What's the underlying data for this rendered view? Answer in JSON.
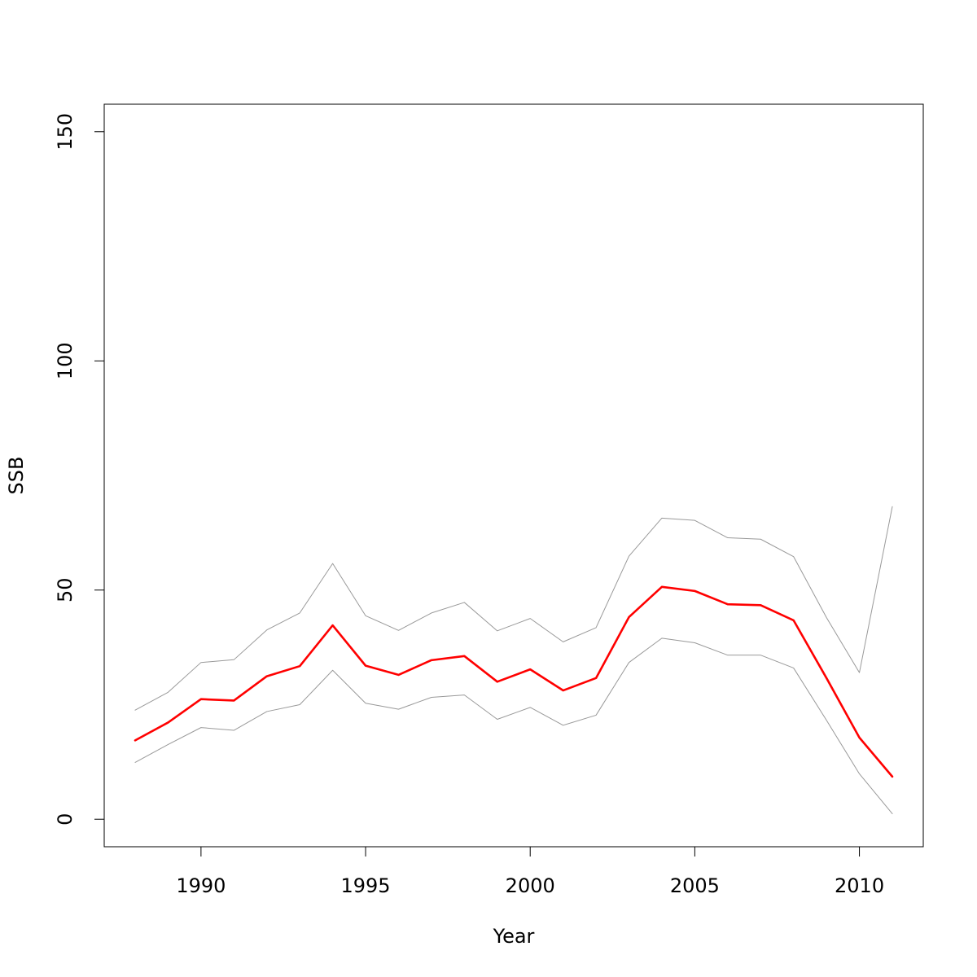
{
  "chart_data": {
    "type": "line",
    "title": "",
    "xlabel": "Year",
    "ylabel": "SSB",
    "xlim": [
      1987.06,
      2011.94
    ],
    "ylim": [
      -6,
      156
    ],
    "x_ticks": [
      1990,
      1995,
      2000,
      2005,
      2010
    ],
    "y_ticks": [
      0,
      50,
      100,
      150
    ],
    "grid": false,
    "legend": "none",
    "x": [
      1988,
      1989,
      1990,
      1991,
      1992,
      1993,
      1994,
      1995,
      1996,
      1997,
      1998,
      1999,
      2000,
      2001,
      2002,
      2003,
      2004,
      2005,
      2006,
      2007,
      2008,
      2009,
      2010,
      2011
    ],
    "series": [
      {
        "role": "estimate",
        "color": "#ff0000",
        "values": [
          17.2,
          21.1,
          26.2,
          25.9,
          31.2,
          33.4,
          42.3,
          33.5,
          31.5,
          34.7,
          35.6,
          30.0,
          32.7,
          28.1,
          30.8,
          44.1,
          50.7,
          49.8,
          46.9,
          46.7,
          43.4,
          30.8,
          17.8,
          9.3
        ]
      },
      {
        "role": "upper",
        "color": "#999999",
        "values": [
          23.8,
          27.7,
          34.2,
          34.8,
          41.3,
          45.0,
          55.8,
          44.4,
          41.2,
          45.0,
          47.3,
          41.1,
          43.8,
          38.7,
          41.8,
          57.4,
          65.7,
          65.2,
          61.4,
          61.1,
          57.3,
          44.0,
          32.0,
          68.2
        ]
      },
      {
        "role": "lower",
        "color": "#999999",
        "values": [
          12.4,
          16.3,
          20.0,
          19.4,
          23.5,
          25.0,
          32.5,
          25.3,
          24.0,
          26.6,
          27.1,
          21.8,
          24.4,
          20.5,
          22.7,
          34.2,
          39.5,
          38.5,
          35.8,
          35.8,
          33.0,
          21.6,
          9.9,
          1.2
        ]
      }
    ]
  }
}
